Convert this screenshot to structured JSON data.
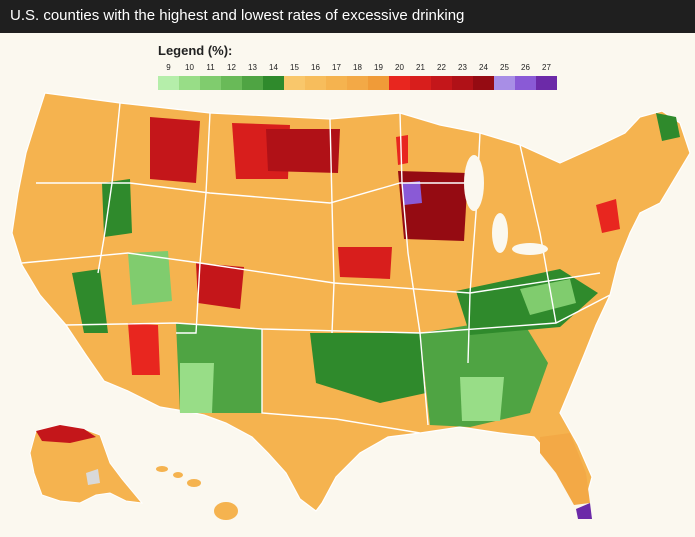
{
  "header": {
    "title": "U.S. counties with the highest and lowest rates of excessive drinking"
  },
  "legend": {
    "title": "Legend (%):",
    "items": [
      {
        "label": "9",
        "color": "#b5eeaa"
      },
      {
        "label": "10",
        "color": "#98dd87"
      },
      {
        "label": "11",
        "color": "#80cc6e"
      },
      {
        "label": "12",
        "color": "#69ba58"
      },
      {
        "label": "13",
        "color": "#4fa443"
      },
      {
        "label": "14",
        "color": "#2f8a2c"
      },
      {
        "label": "15",
        "color": "#f9c76b"
      },
      {
        "label": "16",
        "color": "#f7bd5c"
      },
      {
        "label": "17",
        "color": "#f5b34f"
      },
      {
        "label": "18",
        "color": "#f3a946"
      },
      {
        "label": "19",
        "color": "#f09b38"
      },
      {
        "label": "20",
        "color": "#e8261f"
      },
      {
        "label": "21",
        "color": "#d81e1c"
      },
      {
        "label": "22",
        "color": "#c4161a"
      },
      {
        "label": "23",
        "color": "#b01117"
      },
      {
        "label": "24",
        "color": "#950b12"
      },
      {
        "label": "25",
        "color": "#a88ee6"
      },
      {
        "label": "26",
        "color": "#8a5ad6"
      },
      {
        "label": "27",
        "color": "#6c2aa8"
      }
    ]
  }
}
